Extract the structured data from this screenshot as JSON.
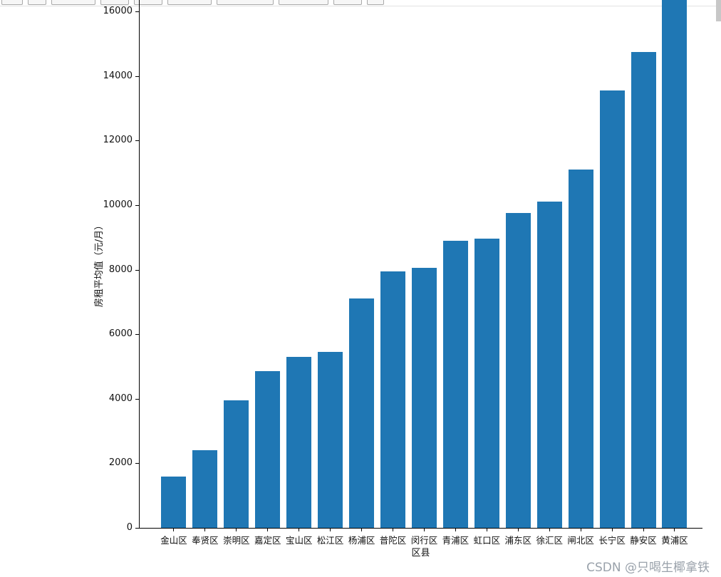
{
  "page": {
    "watermark": "CSDN @只喝生椰拿铁"
  },
  "chart_data": {
    "type": "bar",
    "title": "",
    "xlabel": "区县",
    "ylabel": "房租平均值（元/月）",
    "categories": [
      "金山区",
      "奉贤区",
      "崇明区",
      "嘉定区",
      "宝山区",
      "松江区",
      "杨浦区",
      "普陀区",
      "闵行区",
      "青浦区",
      "虹口区",
      "浦东区",
      "徐汇区",
      "闸北区",
      "长宁区",
      "静安区",
      "黄浦区"
    ],
    "values": [
      1600,
      2400,
      3950,
      4850,
      5300,
      5450,
      7100,
      7950,
      8050,
      8900,
      8950,
      9750,
      10100,
      11100,
      13550,
      14750,
      16500
    ],
    "yticks": [
      0,
      2000,
      4000,
      6000,
      8000,
      10000,
      12000,
      14000,
      16000
    ],
    "ylim": [
      0,
      16350
    ],
    "bar_color": "#1f77b4",
    "grid": false,
    "legend": "none",
    "note": "tallest bar (黄浦区) is clipped by the top edge of the screenshot"
  }
}
